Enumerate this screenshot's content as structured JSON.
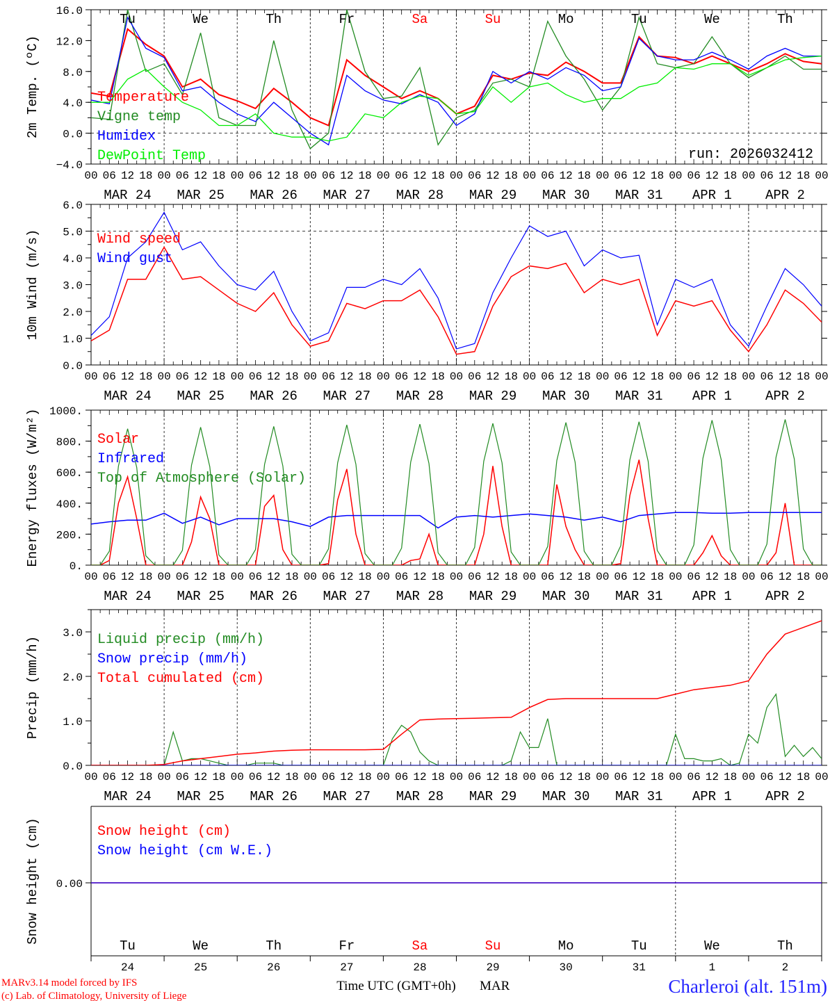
{
  "title": {
    "location": "Charleroi (alt. 151m)",
    "credit_model": "MARv3.14 model forced by IFS",
    "credit_lab": "(c) Lab. of Climatology, University of Liege",
    "xlabel": "Time UTC (GMT+0h)",
    "xlabel_overlay": "MAR"
  },
  "time_axis": {
    "hour_labels": [
      "00",
      "06",
      "12",
      "18"
    ],
    "dates": [
      "MAR 24",
      "MAR 25",
      "MAR 26",
      "MAR 27",
      "MAR 28",
      "MAR 29",
      "MAR 30",
      "MAR 31",
      "APR  1",
      "APR  2"
    ],
    "weekdays": [
      "Tu",
      "We",
      "Th",
      "Fr",
      "Sa",
      "Su",
      "Mo",
      "Tu",
      "We",
      "Th"
    ],
    "weekend": [
      false,
      false,
      false,
      false,
      true,
      true,
      false,
      false,
      false,
      false
    ],
    "day_numbers": [
      "24",
      "25",
      "26",
      "27",
      "28",
      "29",
      "30",
      "31",
      "1",
      "2"
    ],
    "weekday_color": "#000000",
    "weekend_color": "#ff0000"
  },
  "chart_data": [
    {
      "type": "line",
      "ylabel": "2m Temp. (ºC)",
      "ylim": [
        -4,
        16
      ],
      "yticks": [
        -4,
        0,
        4,
        8,
        12,
        16
      ],
      "ytick_labels": [
        "−4.0",
        "0.0",
        "4.0",
        "8.0",
        "12.0",
        "16.0"
      ],
      "dashed_at": 0,
      "annotation": "run: 2026032412",
      "series": [
        {
          "name": "Temperature",
          "color": "#ff0000",
          "width": 2,
          "step_hours": 6,
          "values": [
            5.2,
            4.8,
            13.5,
            11.5,
            10,
            6,
            7,
            5,
            4.2,
            3.2,
            5.8,
            4,
            2,
            1,
            9.5,
            7.5,
            6,
            4.5,
            5.5,
            4.5,
            2.5,
            3.5,
            7.5,
            7,
            7.8,
            7.5,
            9.2,
            8,
            6.5,
            6.5,
            12.5,
            10,
            9.8,
            9,
            10,
            9,
            8,
            9,
            10.3,
            9.3,
            9
          ]
        },
        {
          "name": "Vigne temp",
          "color": "#228b22",
          "width": 1.3,
          "step_hours": 6,
          "values": [
            2,
            1.8,
            16,
            8,
            9,
            5,
            13,
            2,
            1,
            1,
            12,
            3,
            -2,
            0,
            16,
            8,
            4.5,
            4.8,
            8.5,
            -1.5,
            2,
            3,
            6.5,
            7,
            6,
            14.5,
            10,
            7,
            3,
            6,
            15,
            9,
            8.5,
            9,
            12.5,
            9,
            7.2,
            8.5,
            10,
            8.3,
            8.3
          ]
        },
        {
          "name": "Humidex",
          "color": "#0000ff",
          "width": 1.3,
          "step_hours": 6,
          "values": [
            4.3,
            3.8,
            15,
            11,
            9.8,
            5.5,
            6,
            4,
            2.5,
            1.5,
            4,
            2,
            0,
            -1.5,
            7.5,
            5.5,
            4.3,
            3.8,
            5,
            4,
            1,
            2.5,
            8,
            6.5,
            8,
            7,
            8.5,
            7.5,
            5.5,
            6,
            12.3,
            10,
            9.5,
            9.5,
            10.5,
            9.5,
            8.3,
            10,
            11,
            10,
            10
          ]
        },
        {
          "name": "DewPoint Temp",
          "color": "#00ee00",
          "width": 1.3,
          "step_hours": 6,
          "values": [
            4,
            4,
            7,
            8.3,
            6,
            4,
            3,
            1,
            1,
            2.5,
            0,
            -0.5,
            -0.5,
            -1,
            -0.5,
            2.5,
            2,
            4,
            4.8,
            4.5,
            2.5,
            2.8,
            6,
            4,
            6,
            6.5,
            5,
            4,
            4.5,
            4.5,
            6,
            6.5,
            8.5,
            8.3,
            9,
            9,
            7.5,
            8.5,
            9.5,
            9.8,
            10
          ]
        }
      ]
    },
    {
      "type": "line",
      "ylabel": "10m Wind (m/s)",
      "ylim": [
        0,
        6
      ],
      "yticks": [
        0,
        1,
        2,
        3,
        4,
        5,
        6
      ],
      "ytick_labels": [
        "0.0",
        "1.0",
        "2.0",
        "3.0",
        "4.0",
        "5.0",
        "6.0"
      ],
      "dashed_at": 5,
      "series": [
        {
          "name": "Wind speed",
          "color": "#ff0000",
          "width": 1.5,
          "step_hours": 6,
          "values": [
            0.9,
            1.3,
            3.2,
            3.2,
            4.4,
            3.2,
            3.3,
            2.8,
            2.3,
            2.0,
            2.7,
            1.5,
            0.7,
            0.9,
            2.3,
            2.1,
            2.4,
            2.4,
            2.8,
            1.8,
            0.4,
            0.5,
            2.2,
            3.3,
            3.7,
            3.6,
            3.8,
            2.7,
            3.2,
            3.0,
            3.2,
            1.1,
            2.4,
            2.2,
            2.4,
            1.3,
            0.5,
            1.5,
            2.8,
            2.3,
            1.6
          ]
        },
        {
          "name": "Wind gust",
          "color": "#0000ff",
          "width": 1.2,
          "step_hours": 6,
          "values": [
            1.1,
            1.8,
            4.0,
            4.6,
            5.7,
            4.3,
            4.6,
            3.7,
            3.0,
            2.8,
            3.5,
            2.0,
            0.9,
            1.2,
            2.9,
            2.9,
            3.2,
            3.0,
            3.6,
            2.5,
            0.6,
            0.8,
            2.7,
            4.0,
            5.2,
            4.8,
            5.0,
            3.7,
            4.3,
            4.0,
            4.1,
            1.5,
            3.2,
            2.9,
            3.2,
            1.5,
            0.7,
            2.2,
            3.6,
            3.0,
            2.2
          ]
        }
      ]
    },
    {
      "type": "line",
      "ylabel": "Energy fluxes (W/m²)",
      "ylim": [
        0,
        1000
      ],
      "yticks": [
        0,
        200,
        400,
        600,
        800,
        1000
      ],
      "ytick_labels": [
        "0.",
        "200.",
        "400.",
        "600.",
        "800.",
        "1000."
      ],
      "series": [
        {
          "name": "Solar",
          "color": "#ff0000",
          "width": 1.5,
          "step_hours": 3,
          "values": [
            0,
            0,
            30,
            400,
            570,
            300,
            0,
            0,
            0,
            0,
            0,
            150,
            440,
            300,
            0,
            0,
            0,
            0,
            0,
            380,
            450,
            100,
            0,
            0,
            0,
            0,
            10,
            420,
            620,
            200,
            0,
            0,
            0,
            0,
            0,
            30,
            40,
            200,
            0,
            0,
            0,
            0,
            0,
            200,
            640,
            250,
            0,
            0,
            0,
            0,
            0,
            520,
            250,
            100,
            0,
            0,
            0,
            0,
            10,
            450,
            680,
            300,
            0,
            0,
            0,
            0,
            0,
            80,
            190,
            60,
            0,
            0,
            0,
            0,
            0,
            80,
            400,
            0,
            0,
            0,
            0
          ]
        },
        {
          "name": "Infrared",
          "color": "#0000ff",
          "width": 1.5,
          "step_hours": 6,
          "values": [
            265,
            280,
            290,
            290,
            335,
            270,
            310,
            260,
            300,
            300,
            300,
            280,
            250,
            310,
            320,
            320,
            320,
            320,
            320,
            240,
            310,
            320,
            310,
            320,
            330,
            320,
            310,
            290,
            310,
            280,
            320,
            330,
            340,
            340,
            335,
            335,
            340,
            340,
            340,
            340,
            340
          ]
        },
        {
          "name": "Top of Atmosphere (Solar)",
          "color": "#228b22",
          "width": 1.2,
          "step_hours": 3,
          "values": [
            0,
            0,
            90,
            640,
            880,
            630,
            60,
            0,
            0,
            0,
            95,
            645,
            890,
            635,
            65,
            0,
            0,
            0,
            100,
            650,
            895,
            640,
            70,
            0,
            0,
            0,
            105,
            660,
            905,
            650,
            75,
            0,
            0,
            0,
            110,
            665,
            910,
            655,
            80,
            0,
            0,
            0,
            115,
            670,
            915,
            660,
            85,
            0,
            0,
            0,
            120,
            675,
            920,
            665,
            90,
            0,
            0,
            0,
            125,
            680,
            925,
            670,
            95,
            0,
            0,
            0,
            130,
            690,
            935,
            680,
            100,
            0,
            0,
            0,
            135,
            695,
            940,
            685,
            105,
            0,
            0
          ]
        }
      ]
    },
    {
      "type": "line",
      "ylabel": "Precip (mm/h)",
      "ylim": [
        0,
        3.5
      ],
      "yticks": [
        0,
        1,
        2,
        3
      ],
      "ytick_labels": [
        "0.0",
        "1.0",
        "2.0",
        "3.0"
      ],
      "series": [
        {
          "name": "Liquid precip (mm/h)",
          "color": "#228b22",
          "width": 1.2,
          "step_hours": 3,
          "values": [
            0,
            0,
            0,
            0,
            0,
            0,
            0,
            0,
            0,
            0.75,
            0.1,
            0.15,
            0.15,
            0.1,
            0.05,
            0,
            0,
            0,
            0.05,
            0.05,
            0.05,
            0,
            0,
            0,
            0,
            0,
            0,
            0,
            0,
            0,
            0,
            0,
            0,
            0.6,
            0.9,
            0.75,
            0.3,
            0.1,
            0,
            0,
            0,
            0,
            0,
            0,
            0,
            0,
            0.1,
            0.75,
            0.4,
            0.4,
            1.05,
            0,
            0,
            0,
            0,
            0,
            0,
            0,
            0,
            0,
            0,
            0,
            0,
            0,
            0.7,
            0.15,
            0.15,
            0.1,
            0.1,
            0.15,
            0,
            0.05,
            0.7,
            0.5,
            1.3,
            1.6,
            0.2,
            0.45,
            0.2,
            0.4,
            0.15
          ]
        },
        {
          "name": "Snow precip (mm/h)",
          "color": "#0000ff",
          "width": 1.2,
          "step_hours": 240,
          "values": [
            0,
            0
          ]
        },
        {
          "name": "Total cumulated (cm)",
          "color": "#ff0000",
          "width": 1.5,
          "step_hours": 6,
          "values": [
            0,
            0,
            0,
            0,
            0.02,
            0.1,
            0.15,
            0.2,
            0.25,
            0.28,
            0.32,
            0.34,
            0.35,
            0.35,
            0.35,
            0.35,
            0.36,
            0.7,
            1.02,
            1.04,
            1.05,
            1.06,
            1.07,
            1.08,
            1.3,
            1.48,
            1.5,
            1.5,
            1.5,
            1.5,
            1.5,
            1.5,
            1.6,
            1.7,
            1.75,
            1.8,
            1.9,
            2.5,
            2.95,
            3.1,
            3.25
          ]
        }
      ]
    },
    {
      "type": "line",
      "ylabel": "Snow height (cm)",
      "ylim": [
        -1,
        1
      ],
      "yticks": [
        0
      ],
      "ytick_labels": [
        "0.00"
      ],
      "series": [
        {
          "name": "Snow height (cm)",
          "color": "#ff0000",
          "width": 1.5,
          "step_hours": 240,
          "values": [
            0,
            0
          ]
        },
        {
          "name": "Snow height (cm W.E.)",
          "color": "#0000ff",
          "width": 1.2,
          "step_hours": 240,
          "values": [
            0,
            0
          ]
        }
      ]
    }
  ]
}
